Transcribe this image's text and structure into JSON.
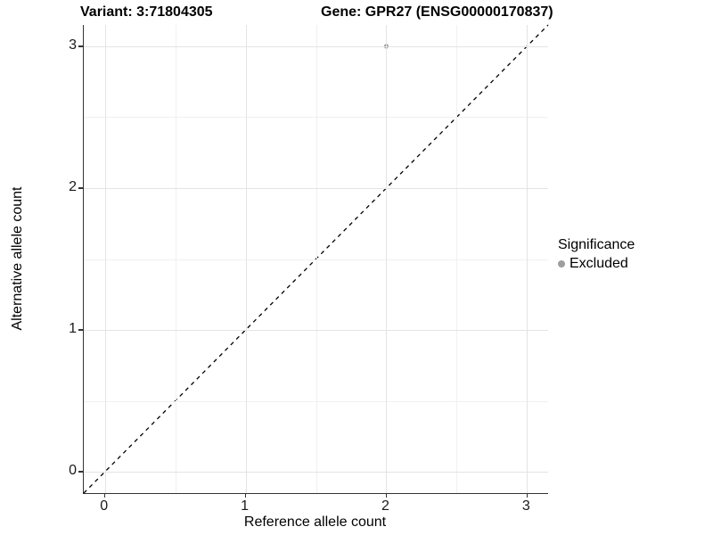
{
  "title": {
    "variant": "Variant: 3:71804305",
    "gene": "Gene: GPR27 (ENSG00000170837)"
  },
  "axes": {
    "x": {
      "label": "Reference allele count",
      "ticks": [
        "0",
        "1",
        "2",
        "3"
      ]
    },
    "y": {
      "label": "Alternative allele count",
      "ticks": [
        "0",
        "1",
        "2",
        "3"
      ]
    }
  },
  "legend": {
    "title": "Significance",
    "items": [
      {
        "label": "Excluded",
        "color": "#9e9e9e"
      }
    ]
  },
  "colors": {
    "background": "#ffffff",
    "axis_line": "#333333",
    "grid_major": "#e4e4e4",
    "grid_minor": "#f0f0f0",
    "identity_line": "#000000",
    "point": "#9e9e9e",
    "text": "#000000"
  },
  "chart_data": {
    "type": "scatter",
    "title": "Variant: 3:71804305   Gene: GPR27 (ENSG00000170837)",
    "xlabel": "Reference allele count",
    "ylabel": "Alternative allele count",
    "xlim": [
      -0.15,
      3.15
    ],
    "ylim": [
      -0.15,
      3.15
    ],
    "x_major_ticks": [
      0,
      1,
      2,
      3
    ],
    "y_major_ticks": [
      0,
      1,
      2,
      3
    ],
    "x_minor_gridlines": [
      0.5,
      1.5,
      2.5
    ],
    "y_minor_gridlines": [
      0.5,
      1.5,
      2.5
    ],
    "grid": true,
    "legend_position": "right",
    "series": [
      {
        "name": "Excluded",
        "color": "#9e9e9e",
        "points": [
          {
            "x": 2,
            "y": 3
          }
        ]
      }
    ],
    "reference_line": {
      "kind": "identity",
      "slope": 1,
      "intercept": 0,
      "style": "dashed",
      "color": "#000000"
    }
  }
}
